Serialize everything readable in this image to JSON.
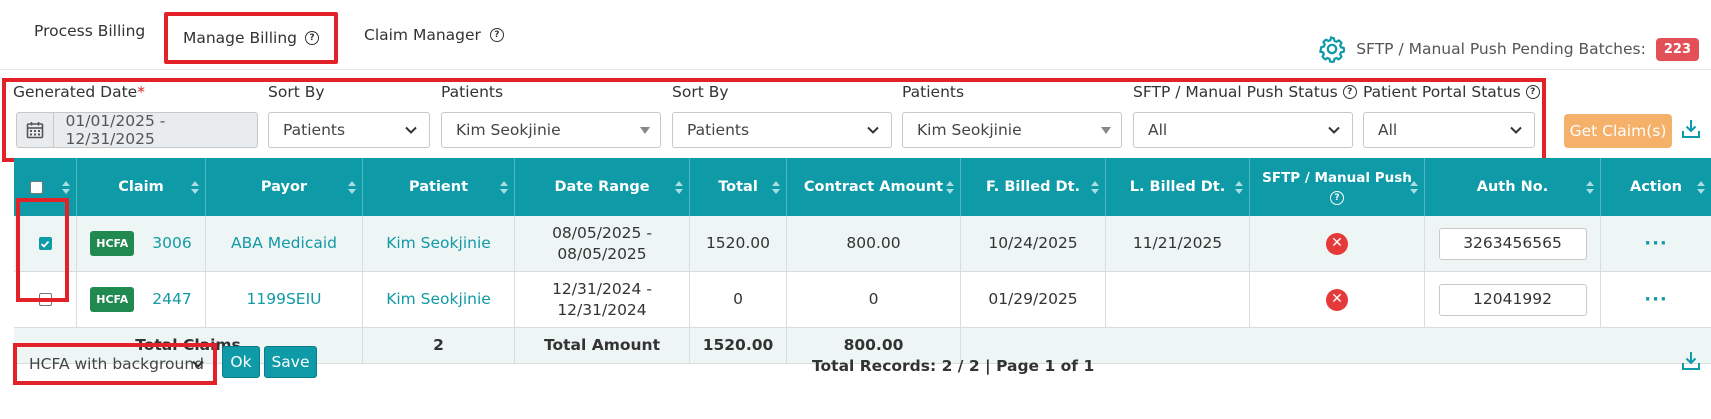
{
  "tabs": {
    "process_billing": "Process Billing",
    "manage_billing": "Manage Billing",
    "claim_manager": "Claim Manager"
  },
  "pending": {
    "label": "SFTP / Manual Push Pending Batches:",
    "count": "223"
  },
  "filters": {
    "generated_date_label": "Generated Date",
    "generated_date_required": "*",
    "generated_date_value": "01/01/2025 - 12/31/2025",
    "sort_by_1_label": "Sort By",
    "sort_by_1_value": "Patients",
    "patients_1_label": "Patients",
    "patients_1_value": "Kim Seokjinie",
    "sort_by_2_label": "Sort By",
    "sort_by_2_value": "Patients",
    "patients_2_label": "Patients",
    "patients_2_value": "Kim Seokjinie",
    "sftp_status_label": "SFTP / Manual Push Status",
    "sftp_status_value": "All",
    "portal_status_label": "Patient Portal Status",
    "portal_status_value": "All",
    "get_claims_label": "Get Claim(s)"
  },
  "table": {
    "headers": [
      "",
      "Claim",
      "Payor",
      "Patient",
      "Date Range",
      "Total",
      "Contract Amount",
      "F. Billed Dt.",
      "L. Billed Dt.",
      "SFTP / Manual Push",
      "Auth No.",
      "Action"
    ],
    "rows": [
      {
        "checked": true,
        "badge": "HCFA",
        "claim": "3006",
        "payor": "ABA Medicaid",
        "patient": "Kim Seokjinie",
        "date_range": "08/05/2025 -\n08/05/2025",
        "total": "1520.00",
        "contract": "800.00",
        "f_billed": "10/24/2025",
        "l_billed": "11/21/2025",
        "auth": "3263456565"
      },
      {
        "checked": false,
        "badge": "HCFA",
        "claim": "2447",
        "payor": "1199SEIU",
        "patient": "Kim Seokjinie",
        "date_range": "12/31/2024 -\n12/31/2024",
        "total": "0",
        "contract": "0",
        "f_billed": "01/29/2025",
        "l_billed": "",
        "auth": "12041992"
      }
    ],
    "totals": {
      "claims_label": "Total Claims",
      "claims_count": "2",
      "amount_label": "Total Amount",
      "total": "1520.00",
      "contract": "800.00"
    }
  },
  "footer": {
    "format_value": "HCFA with background",
    "ok_label": "Ok",
    "save_label": "Save",
    "records_text": "Total Records: 2 / 2 | Page 1 of 1"
  },
  "colors": {
    "teal": "#0e9aa7",
    "highlight_red": "#e32129",
    "orange": "#f5b06a",
    "hcfa_green": "#20894f",
    "error_red": "#e63a3a"
  }
}
